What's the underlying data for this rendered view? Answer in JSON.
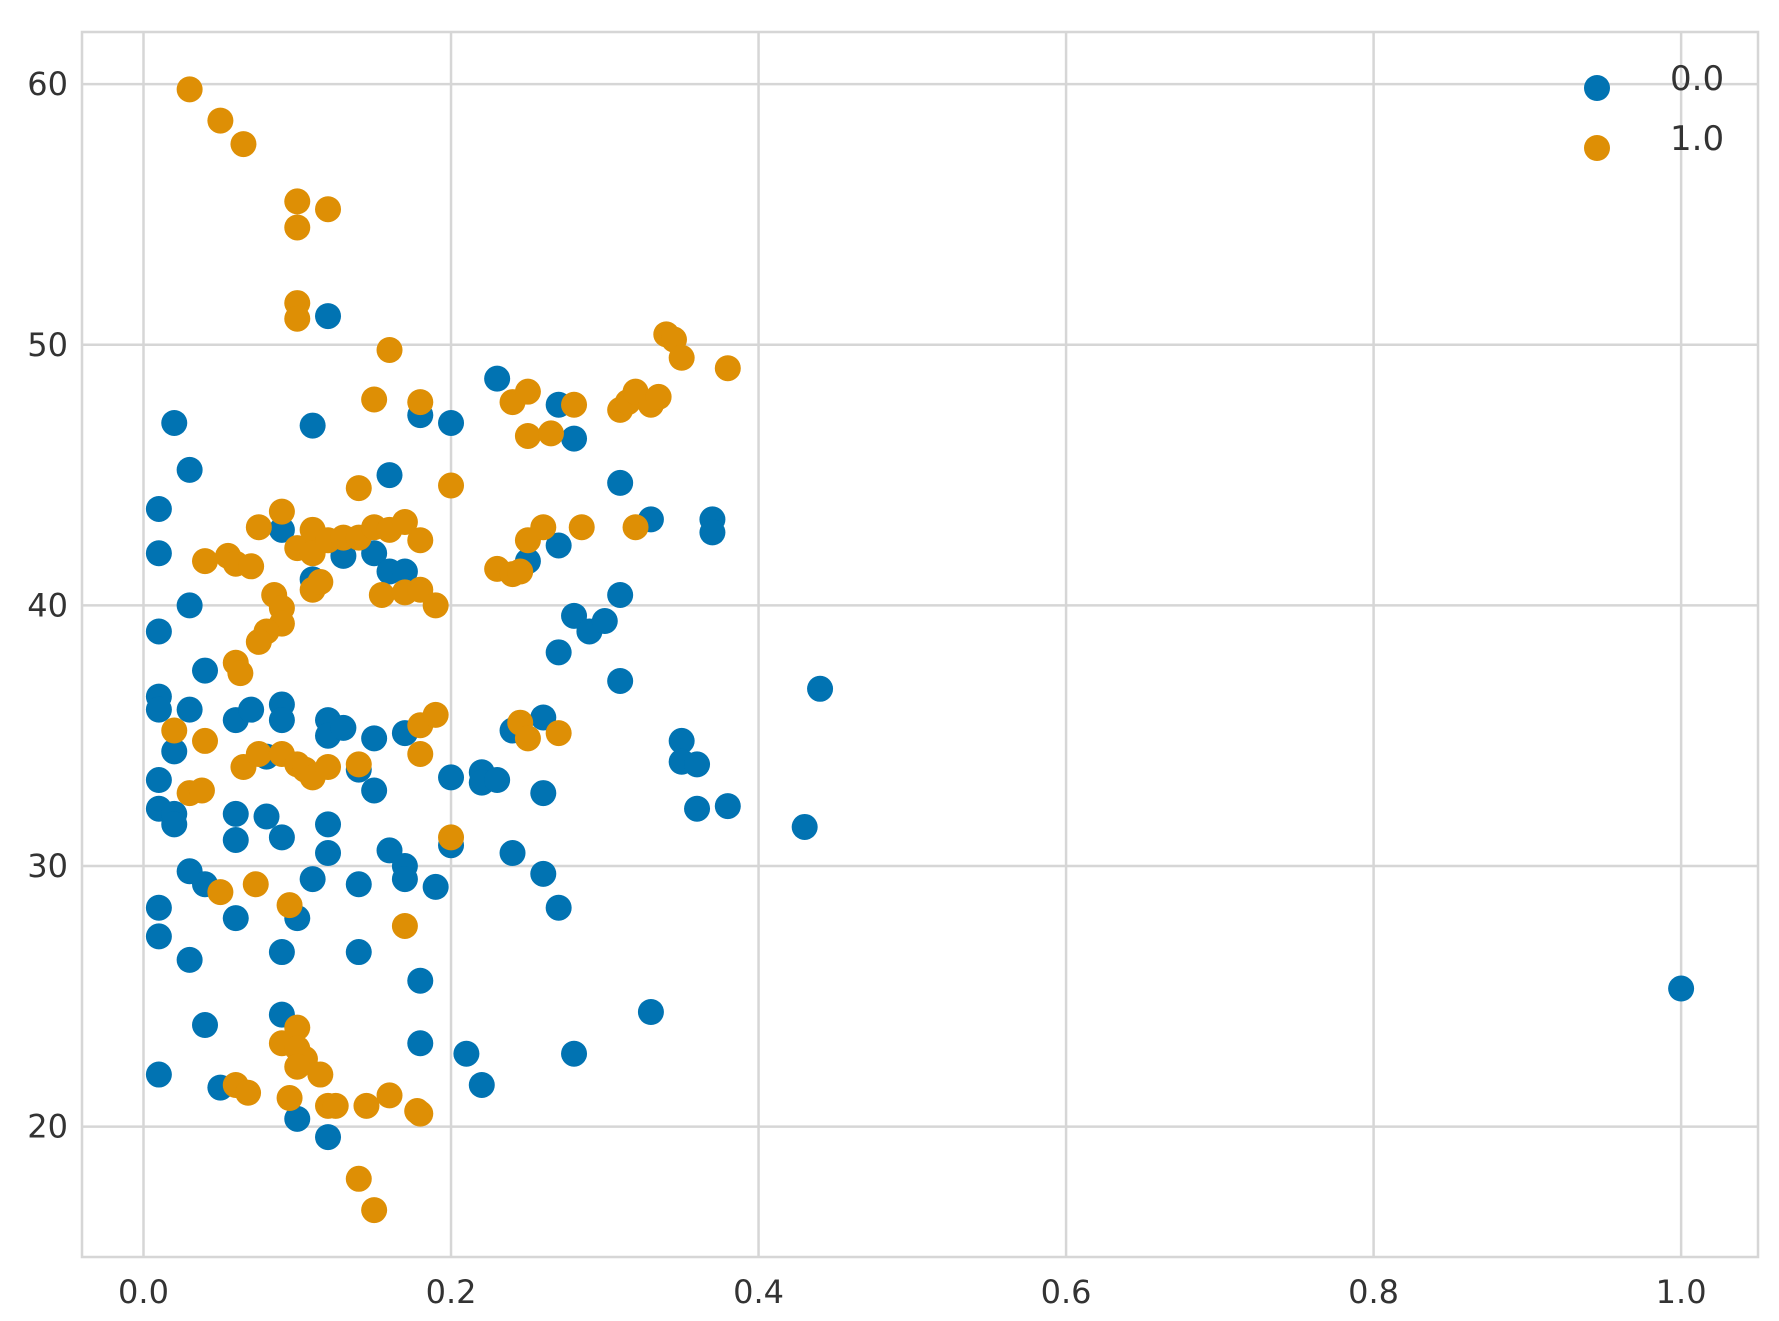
{
  "chart_data": {
    "type": "scatter",
    "title": "",
    "xlabel": "",
    "ylabel": "",
    "xlim": [
      -0.04,
      1.05
    ],
    "ylim": [
      15,
      62
    ],
    "xticks": [
      0.0,
      0.2,
      0.4,
      0.6,
      0.8,
      1.0
    ],
    "xtick_labels": [
      "0.0",
      "0.2",
      "0.4",
      "0.6",
      "0.8",
      "1.0"
    ],
    "yticks": [
      20,
      30,
      40,
      50,
      60
    ],
    "ytick_labels": [
      "20",
      "30",
      "40",
      "50",
      "60"
    ],
    "grid": true,
    "legend_position": "top-right",
    "series": [
      {
        "name": "0.0",
        "color": "#0173b2",
        "points": [
          [
            0.01,
            43.7
          ],
          [
            0.01,
            42.0
          ],
          [
            0.01,
            39.0
          ],
          [
            0.01,
            36.5
          ],
          [
            0.01,
            36.0
          ],
          [
            0.01,
            33.3
          ],
          [
            0.01,
            32.2
          ],
          [
            0.01,
            28.4
          ],
          [
            0.01,
            27.3
          ],
          [
            0.01,
            22.0
          ],
          [
            0.02,
            47.0
          ],
          [
            0.02,
            34.4
          ],
          [
            0.02,
            32.0
          ],
          [
            0.02,
            31.6
          ],
          [
            0.03,
            45.2
          ],
          [
            0.03,
            40.0
          ],
          [
            0.03,
            36.0
          ],
          [
            0.03,
            29.8
          ],
          [
            0.03,
            26.4
          ],
          [
            0.04,
            37.5
          ],
          [
            0.04,
            29.3
          ],
          [
            0.04,
            23.9
          ],
          [
            0.05,
            21.5
          ],
          [
            0.06,
            35.6
          ],
          [
            0.06,
            32.0
          ],
          [
            0.06,
            31.0
          ],
          [
            0.06,
            28.0
          ],
          [
            0.07,
            36.0
          ],
          [
            0.08,
            34.2
          ],
          [
            0.08,
            31.9
          ],
          [
            0.09,
            42.9
          ],
          [
            0.09,
            36.2
          ],
          [
            0.09,
            35.6
          ],
          [
            0.09,
            31.1
          ],
          [
            0.09,
            26.7
          ],
          [
            0.09,
            24.3
          ],
          [
            0.1,
            28.0
          ],
          [
            0.1,
            20.3
          ],
          [
            0.11,
            46.9
          ],
          [
            0.11,
            41.0
          ],
          [
            0.11,
            29.5
          ],
          [
            0.12,
            51.1
          ],
          [
            0.12,
            35.6
          ],
          [
            0.12,
            35.0
          ],
          [
            0.12,
            31.6
          ],
          [
            0.12,
            30.5
          ],
          [
            0.12,
            19.6
          ],
          [
            0.13,
            41.9
          ],
          [
            0.13,
            35.3
          ],
          [
            0.14,
            33.7
          ],
          [
            0.14,
            29.3
          ],
          [
            0.14,
            26.7
          ],
          [
            0.15,
            42.0
          ],
          [
            0.15,
            34.9
          ],
          [
            0.15,
            32.9
          ],
          [
            0.16,
            45.0
          ],
          [
            0.16,
            41.3
          ],
          [
            0.16,
            30.6
          ],
          [
            0.17,
            41.3
          ],
          [
            0.17,
            35.1
          ],
          [
            0.17,
            30.0
          ],
          [
            0.17,
            29.5
          ],
          [
            0.18,
            47.3
          ],
          [
            0.18,
            25.6
          ],
          [
            0.18,
            23.2
          ],
          [
            0.19,
            29.2
          ],
          [
            0.2,
            47.0
          ],
          [
            0.2,
            33.4
          ],
          [
            0.2,
            30.8
          ],
          [
            0.21,
            22.8
          ],
          [
            0.22,
            33.6
          ],
          [
            0.22,
            33.2
          ],
          [
            0.22,
            21.6
          ],
          [
            0.23,
            48.7
          ],
          [
            0.23,
            33.3
          ],
          [
            0.24,
            35.2
          ],
          [
            0.24,
            30.5
          ],
          [
            0.25,
            41.7
          ],
          [
            0.26,
            35.7
          ],
          [
            0.26,
            32.8
          ],
          [
            0.26,
            29.7
          ],
          [
            0.27,
            47.7
          ],
          [
            0.27,
            42.3
          ],
          [
            0.27,
            38.2
          ],
          [
            0.27,
            28.4
          ],
          [
            0.28,
            46.4
          ],
          [
            0.28,
            39.6
          ],
          [
            0.28,
            22.8
          ],
          [
            0.29,
            39.0
          ],
          [
            0.3,
            39.4
          ],
          [
            0.31,
            44.7
          ],
          [
            0.31,
            40.4
          ],
          [
            0.31,
            37.1
          ],
          [
            0.33,
            43.3
          ],
          [
            0.33,
            24.4
          ],
          [
            0.35,
            34.8
          ],
          [
            0.35,
            34.0
          ],
          [
            0.36,
            33.9
          ],
          [
            0.36,
            32.2
          ],
          [
            0.37,
            43.3
          ],
          [
            0.37,
            42.8
          ],
          [
            0.38,
            32.3
          ],
          [
            0.43,
            31.5
          ],
          [
            0.44,
            36.8
          ],
          [
            1.0,
            25.3
          ]
        ]
      },
      {
        "name": "1.0",
        "color": "#de8f05",
        "points": [
          [
            0.03,
            59.8
          ],
          [
            0.05,
            58.6
          ],
          [
            0.065,
            57.7
          ],
          [
            0.1,
            55.5
          ],
          [
            0.1,
            54.5
          ],
          [
            0.12,
            55.2
          ],
          [
            0.1,
            51.6
          ],
          [
            0.1,
            51.0
          ],
          [
            0.16,
            49.8
          ],
          [
            0.15,
            47.9
          ],
          [
            0.18,
            47.8
          ],
          [
            0.14,
            44.5
          ],
          [
            0.2,
            44.6
          ],
          [
            0.075,
            43.0
          ],
          [
            0.09,
            43.6
          ],
          [
            0.1,
            42.2
          ],
          [
            0.11,
            42.9
          ],
          [
            0.11,
            42.0
          ],
          [
            0.12,
            42.5
          ],
          [
            0.13,
            42.6
          ],
          [
            0.14,
            42.6
          ],
          [
            0.15,
            43.0
          ],
          [
            0.16,
            42.9
          ],
          [
            0.17,
            43.2
          ],
          [
            0.18,
            42.5
          ],
          [
            0.04,
            41.7
          ],
          [
            0.055,
            41.9
          ],
          [
            0.06,
            41.6
          ],
          [
            0.07,
            41.5
          ],
          [
            0.085,
            40.4
          ],
          [
            0.09,
            39.9
          ],
          [
            0.09,
            39.3
          ],
          [
            0.08,
            39.0
          ],
          [
            0.075,
            38.6
          ],
          [
            0.11,
            40.6
          ],
          [
            0.115,
            40.9
          ],
          [
            0.155,
            40.4
          ],
          [
            0.17,
            40.5
          ],
          [
            0.18,
            40.6
          ],
          [
            0.19,
            40.0
          ],
          [
            0.06,
            37.8
          ],
          [
            0.063,
            37.4
          ],
          [
            0.02,
            35.2
          ],
          [
            0.04,
            34.8
          ],
          [
            0.065,
            33.8
          ],
          [
            0.075,
            34.3
          ],
          [
            0.09,
            34.3
          ],
          [
            0.1,
            33.9
          ],
          [
            0.105,
            33.7
          ],
          [
            0.11,
            33.4
          ],
          [
            0.12,
            33.8
          ],
          [
            0.14,
            33.9
          ],
          [
            0.03,
            32.8
          ],
          [
            0.038,
            32.9
          ],
          [
            0.18,
            34.3
          ],
          [
            0.18,
            35.4
          ],
          [
            0.19,
            35.8
          ],
          [
            0.2,
            31.1
          ],
          [
            0.05,
            29.0
          ],
          [
            0.073,
            29.3
          ],
          [
            0.095,
            28.5
          ],
          [
            0.17,
            27.7
          ],
          [
            0.09,
            23.2
          ],
          [
            0.1,
            23.8
          ],
          [
            0.1,
            23.0
          ],
          [
            0.105,
            22.6
          ],
          [
            0.1,
            22.3
          ],
          [
            0.115,
            22.0
          ],
          [
            0.06,
            21.6
          ],
          [
            0.068,
            21.3
          ],
          [
            0.095,
            21.1
          ],
          [
            0.12,
            20.8
          ],
          [
            0.125,
            20.8
          ],
          [
            0.145,
            20.8
          ],
          [
            0.16,
            21.2
          ],
          [
            0.18,
            20.5
          ],
          [
            0.178,
            20.6
          ],
          [
            0.14,
            18.0
          ],
          [
            0.15,
            16.8
          ],
          [
            0.23,
            41.4
          ],
          [
            0.24,
            41.2
          ],
          [
            0.245,
            41.3
          ],
          [
            0.25,
            42.5
          ],
          [
            0.26,
            43.0
          ],
          [
            0.285,
            43.0
          ],
          [
            0.32,
            43.0
          ],
          [
            0.24,
            47.8
          ],
          [
            0.25,
            48.2
          ],
          [
            0.25,
            46.5
          ],
          [
            0.265,
            46.6
          ],
          [
            0.28,
            47.7
          ],
          [
            0.31,
            47.5
          ],
          [
            0.315,
            47.8
          ],
          [
            0.32,
            48.2
          ],
          [
            0.33,
            47.7
          ],
          [
            0.335,
            48.0
          ],
          [
            0.34,
            50.4
          ],
          [
            0.345,
            50.2
          ],
          [
            0.35,
            49.5
          ],
          [
            0.38,
            49.1
          ],
          [
            0.245,
            35.5
          ],
          [
            0.25,
            34.9
          ],
          [
            0.27,
            35.1
          ]
        ]
      }
    ]
  }
}
